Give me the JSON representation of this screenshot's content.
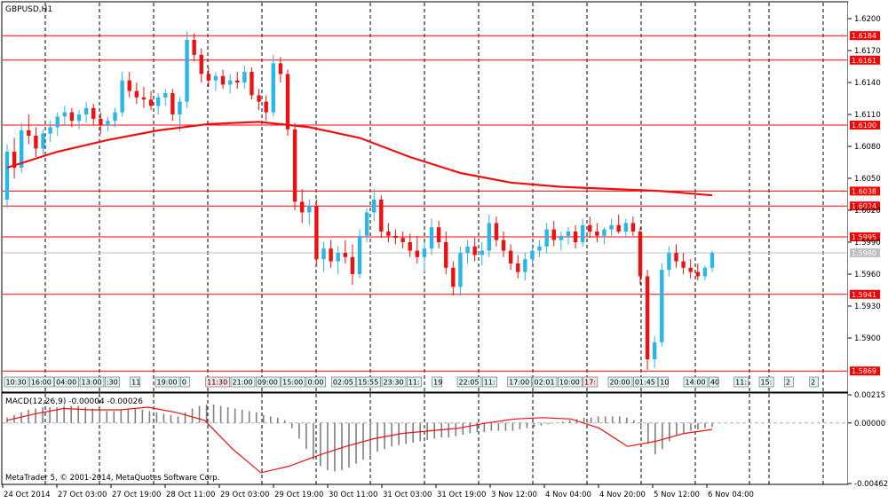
{
  "window": {
    "title": "GBPUSD,H1"
  },
  "chart_data": [
    {
      "type": "candlestick",
      "symbol": "GBPUSD",
      "timeframe": "H1",
      "ylim": [
        1.585,
        1.6215
      ],
      "y_ticks": [
        1.62,
        1.617,
        1.614,
        1.611,
        1.608,
        1.605,
        1.602,
        1.599,
        1.596,
        1.593,
        1.59
      ],
      "price_levels": [
        {
          "value": 1.6184,
          "label": "1.6184"
        },
        {
          "value": 1.6161,
          "label": "1.6161"
        },
        {
          "value": 1.61,
          "label": "1.6100"
        },
        {
          "value": 1.6038,
          "label": "1.6038"
        },
        {
          "value": 1.6024,
          "label": "1.6024"
        },
        {
          "value": 1.5995,
          "label": "1.5995"
        },
        {
          "value": 1.5941,
          "label": "1.5941"
        },
        {
          "value": 1.5869,
          "label": "1.5869"
        }
      ],
      "current_price": {
        "value": 1.598,
        "label": "1.5980"
      },
      "x_labels": [
        "24 Oct 2014",
        "27 Oct 03:00",
        "27 Oct 19:00",
        "28 Oct 11:00",
        "29 Oct 03:00",
        "29 Oct 19:00",
        "30 Oct 11:00",
        "31 Oct 03:00",
        "31 Oct 19:00",
        "3 Nov 12:00",
        "4 Nov 04:00",
        "4 Nov 20:00",
        "5 Nov 12:00",
        "6 Nov 04:00"
      ],
      "session_labels": [
        "10:30",
        "16:00",
        "04:00",
        "13:00",
        ":30",
        "11",
        "19:00",
        "0",
        "11:30",
        "21:00",
        "09:00",
        "15:00",
        "0:00",
        "02:05",
        "15:55",
        "23:30",
        "11:",
        "19",
        "22:05",
        "11:",
        "17:00",
        "02:01",
        "10:00",
        "17:",
        "20:00",
        "01:45",
        "10",
        "14:00",
        "40",
        "11:",
        "15:",
        "2",
        "2"
      ],
      "ohlc": [
        [
          1.603,
          1.6082,
          1.6022,
          1.6075
        ],
        [
          1.6075,
          1.6088,
          1.605,
          1.606
        ],
        [
          1.606,
          1.6102,
          1.6055,
          1.6095
        ],
        [
          1.6095,
          1.611,
          1.6082,
          1.609
        ],
        [
          1.609,
          1.6098,
          1.607,
          1.6078
        ],
        [
          1.6078,
          1.6096,
          1.6072,
          1.6092
        ],
        [
          1.6092,
          1.6104,
          1.6084,
          1.6098
        ],
        [
          1.6098,
          1.6112,
          1.609,
          1.6108
        ],
        [
          1.6108,
          1.6118,
          1.61,
          1.6112
        ],
        [
          1.6112,
          1.6116,
          1.6098,
          1.6104
        ],
        [
          1.6104,
          1.6114,
          1.6096,
          1.611
        ],
        [
          1.611,
          1.6122,
          1.6102,
          1.6116
        ],
        [
          1.6116,
          1.612,
          1.61,
          1.6106
        ],
        [
          1.6106,
          1.6112,
          1.6092,
          1.61
        ],
        [
          1.61,
          1.6108,
          1.6094,
          1.6104
        ],
        [
          1.6104,
          1.6116,
          1.6098,
          1.6112
        ],
        [
          1.6112,
          1.615,
          1.6108,
          1.6142
        ],
        [
          1.6142,
          1.615,
          1.6126,
          1.6132
        ],
        [
          1.6132,
          1.614,
          1.612,
          1.6126
        ],
        [
          1.6126,
          1.6136,
          1.6116,
          1.6124
        ],
        [
          1.6124,
          1.6132,
          1.6114,
          1.6118
        ],
        [
          1.6118,
          1.613,
          1.611,
          1.6126
        ],
        [
          1.6126,
          1.6134,
          1.6118,
          1.613
        ],
        [
          1.613,
          1.6134,
          1.6104,
          1.611
        ],
        [
          1.611,
          1.6126,
          1.6094,
          1.6122
        ],
        [
          1.6122,
          1.6188,
          1.6116,
          1.618
        ],
        [
          1.618,
          1.6186,
          1.616,
          1.6166
        ],
        [
          1.6166,
          1.6172,
          1.614,
          1.6148
        ],
        [
          1.6148,
          1.6154,
          1.6136,
          1.6142
        ],
        [
          1.6142,
          1.615,
          1.6132,
          1.6146
        ],
        [
          1.6146,
          1.6152,
          1.6134,
          1.6138
        ],
        [
          1.6138,
          1.6148,
          1.613,
          1.6142
        ],
        [
          1.6142,
          1.615,
          1.6134,
          1.614
        ],
        [
          1.614,
          1.6156,
          1.6134,
          1.615
        ],
        [
          1.615,
          1.6154,
          1.6124,
          1.6128
        ],
        [
          1.6128,
          1.6134,
          1.6114,
          1.6122
        ],
        [
          1.6122,
          1.6128,
          1.6104,
          1.6112
        ],
        [
          1.6112,
          1.6166,
          1.6108,
          1.6158
        ],
        [
          1.6158,
          1.6164,
          1.614,
          1.6148
        ],
        [
          1.6148,
          1.6152,
          1.609,
          1.6096
        ],
        [
          1.6096,
          1.6102,
          1.602,
          1.6028
        ],
        [
          1.6028,
          1.604,
          1.6008,
          1.6018
        ],
        [
          1.6018,
          1.603,
          1.6006,
          1.6024
        ],
        [
          1.6024,
          1.603,
          1.5968,
          1.5974
        ],
        [
          1.5974,
          1.599,
          1.5962,
          1.5984
        ],
        [
          1.5984,
          1.5992,
          1.5966,
          1.5972
        ],
        [
          1.5972,
          1.5986,
          1.596,
          1.598
        ],
        [
          1.598,
          1.5992,
          1.597,
          1.5976
        ],
        [
          1.5976,
          1.5988,
          1.595,
          1.596
        ],
        [
          1.596,
          1.6002,
          1.5956,
          1.5996
        ],
        [
          1.5996,
          1.6022,
          1.599,
          1.6018
        ],
        [
          1.6018,
          1.604,
          1.601,
          1.603
        ],
        [
          1.603,
          1.6034,
          1.5994,
          1.6
        ],
        [
          1.6,
          1.6008,
          1.599,
          1.5996
        ],
        [
          1.5996,
          1.6002,
          1.5988,
          1.5994
        ],
        [
          1.5994,
          1.6,
          1.5984,
          1.599
        ],
        [
          1.599,
          1.5998,
          1.5976,
          1.5982
        ],
        [
          1.5982,
          1.5996,
          1.597,
          1.5976
        ],
        [
          1.5976,
          1.599,
          1.5962,
          1.5984
        ],
        [
          1.5984,
          1.6012,
          1.5978,
          1.6004
        ],
        [
          1.6004,
          1.601,
          1.5984,
          1.599
        ],
        [
          1.599,
          1.6,
          1.596,
          1.5966
        ],
        [
          1.5966,
          1.5972,
          1.594,
          1.5948
        ],
        [
          1.5948,
          1.5986,
          1.594,
          1.598
        ],
        [
          1.598,
          1.5992,
          1.597,
          1.5986
        ],
        [
          1.5986,
          1.5994,
          1.5972,
          1.5978
        ],
        [
          1.5978,
          1.599,
          1.5968,
          1.5982
        ],
        [
          1.5982,
          1.6016,
          1.5976,
          1.6008
        ],
        [
          1.6008,
          1.6014,
          1.5986,
          1.5992
        ],
        [
          1.5992,
          1.6,
          1.5976,
          1.5982
        ],
        [
          1.5982,
          1.5988,
          1.5964,
          1.597
        ],
        [
          1.597,
          1.5978,
          1.5956,
          1.5962
        ],
        [
          1.5962,
          1.598,
          1.5954,
          1.5974
        ],
        [
          1.5974,
          1.5988,
          1.5968,
          1.5982
        ],
        [
          1.5982,
          1.5992,
          1.5976,
          1.5986
        ],
        [
          1.5986,
          1.6008,
          1.598,
          1.6002
        ],
        [
          1.6002,
          1.601,
          1.5986,
          1.5992
        ],
        [
          1.5992,
          1.6,
          1.5982,
          1.5996
        ],
        [
          1.5996,
          1.6004,
          1.5988,
          1.6
        ],
        [
          1.6,
          1.6006,
          1.5984,
          1.599
        ],
        [
          1.599,
          1.6012,
          1.5986,
          1.6006
        ],
        [
          1.6006,
          1.6014,
          1.5994,
          1.6
        ],
        [
          1.6,
          1.6008,
          1.599,
          1.5996
        ],
        [
          1.5996,
          1.6004,
          1.5988,
          1.6002
        ],
        [
          1.6002,
          1.6012,
          1.5996,
          1.6006
        ],
        [
          1.6006,
          1.6016,
          1.5998,
          1.6
        ],
        [
          1.6,
          1.6012,
          1.5994,
          1.6008
        ],
        [
          1.6008,
          1.6014,
          1.5996,
          1.6
        ],
        [
          1.6,
          1.6004,
          1.595,
          1.5958
        ],
        [
          1.5958,
          1.5964,
          1.587,
          1.588
        ],
        [
          1.588,
          1.5902,
          1.5872,
          1.5896
        ],
        [
          1.5896,
          1.597,
          1.5892,
          1.5964
        ],
        [
          1.5964,
          1.5986,
          1.5958,
          1.598
        ],
        [
          1.598,
          1.5988,
          1.5966,
          1.5972
        ],
        [
          1.5972,
          1.598,
          1.596,
          1.5966
        ],
        [
          1.5966,
          1.5974,
          1.5956,
          1.5962
        ],
        [
          1.5962,
          1.597,
          1.5954,
          1.5958
        ],
        [
          1.5958,
          1.5968,
          1.5954,
          1.5966
        ],
        [
          1.5966,
          1.5982,
          1.5962,
          1.598
        ]
      ],
      "moving_average": [
        1.606,
        1.6075,
        1.6086,
        1.6095,
        1.6101,
        1.6103,
        1.6098,
        1.6088,
        1.607,
        1.6055,
        1.6046,
        1.6042,
        1.604,
        1.6038,
        1.6034
      ],
      "indicator": {
        "name": "MACD",
        "label": "MACD(12,26,9) -0.00004 -0.00026",
        "ylim": [
          -0.00462,
          0.00215
        ],
        "y_ticks": [
          {
            "value": 0.00215,
            "label": "0.00215"
          },
          {
            "value": 0.0,
            "label": "0.00000"
          },
          {
            "value": -0.00462,
            "label": "-0.00462"
          }
        ],
        "histogram": [
          0.0004,
          0.0006,
          0.0008,
          0.001,
          0.0011,
          0.0012,
          0.0012,
          0.0012,
          0.0013,
          0.0013,
          0.0013,
          0.0012,
          0.0011,
          0.001,
          0.0009,
          0.0009,
          0.001,
          0.0011,
          0.0011,
          0.001,
          0.0009,
          0.0008,
          0.0007,
          0.0006,
          0.0005,
          0.0008,
          0.0011,
          0.0013,
          0.0014,
          0.0014,
          0.0013,
          0.0012,
          0.0011,
          0.001,
          0.0009,
          0.0008,
          0.0006,
          0.0005,
          0.0004,
          0.0002,
          -0.0004,
          -0.0012,
          -0.002,
          -0.0028,
          -0.0033,
          -0.0036,
          -0.0037,
          -0.0036,
          -0.0034,
          -0.0031,
          -0.0028,
          -0.0025,
          -0.0022,
          -0.002,
          -0.0018,
          -0.0017,
          -0.0016,
          -0.0015,
          -0.0014,
          -0.0013,
          -0.0012,
          -0.0011,
          -0.0011,
          -0.001,
          -0.0009,
          -0.0008,
          -0.0007,
          -0.0007,
          -0.0006,
          -0.0006,
          -0.0006,
          -0.0006,
          -0.0005,
          -0.0004,
          -0.0003,
          -0.0002,
          -0.0001,
          0.0,
          0.0001,
          0.0002,
          0.0003,
          0.0004,
          0.0004,
          0.0005,
          0.0005,
          0.0005,
          0.0005,
          0.0004,
          0.0002,
          -0.0005,
          -0.0016,
          -0.0024,
          -0.002,
          -0.0014,
          -0.001,
          -0.0008,
          -0.0006,
          -0.0005,
          -0.0004,
          -0.0003
        ],
        "signal": [
          0.0002,
          0.0007,
          0.0011,
          0.001,
          0.001,
          0.0012,
          0.0008,
          0.0002,
          -0.002,
          -0.0038,
          -0.0033,
          -0.0025,
          -0.0018,
          -0.0012,
          -0.0008,
          -0.0006,
          -0.0004,
          0.0,
          0.0003,
          0.0004,
          0.0003,
          -0.0004,
          -0.0018,
          -0.0014,
          -0.0008,
          -0.0005
        ]
      }
    }
  ]
}
